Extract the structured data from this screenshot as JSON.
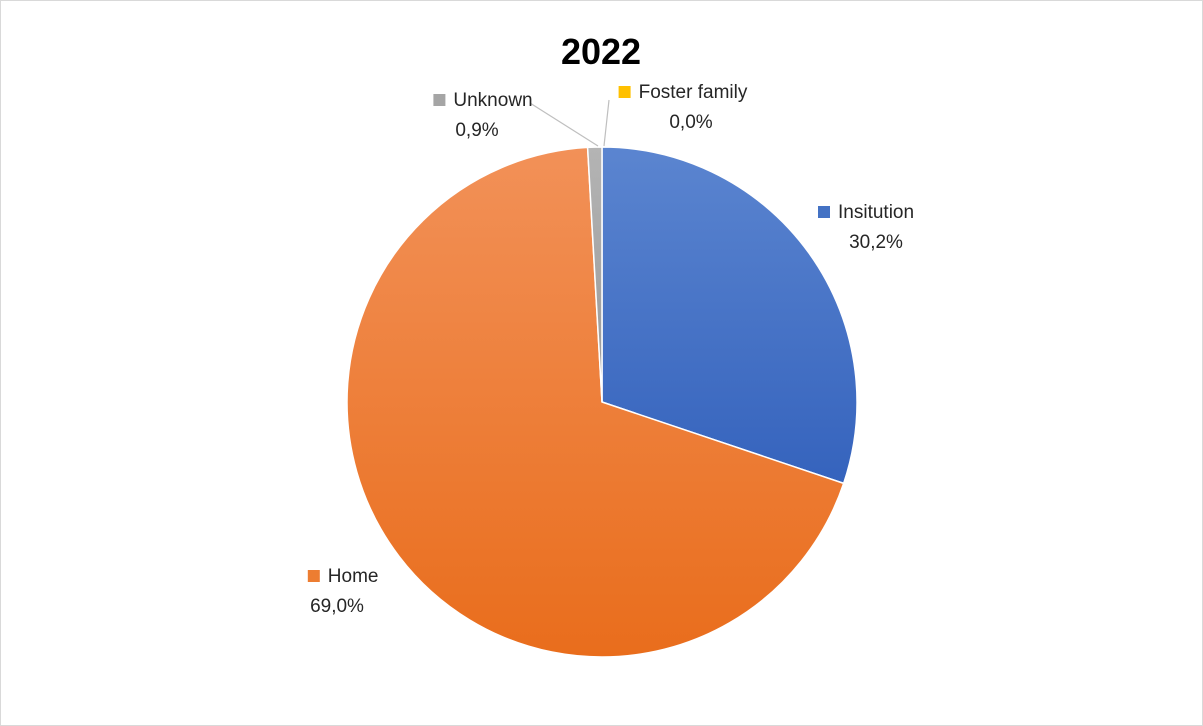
{
  "chart_data": {
    "type": "pie",
    "title": "2022",
    "slices": [
      {
        "label": "Insitution",
        "value": 30.2,
        "value_label": "30,2%",
        "color": "#4472c4"
      },
      {
        "label": "Home",
        "value": 69.0,
        "value_label": "69,0%",
        "color": "#ed7d31"
      },
      {
        "label": "Unknown",
        "value": 0.9,
        "value_label": "0,9%",
        "color": "#a5a5a5"
      },
      {
        "label": "Foster family",
        "value": 0.0,
        "value_label": "0,0%",
        "color": "#ffc000"
      }
    ],
    "legend": "none",
    "data_labels": "outside-with-legend-key"
  }
}
